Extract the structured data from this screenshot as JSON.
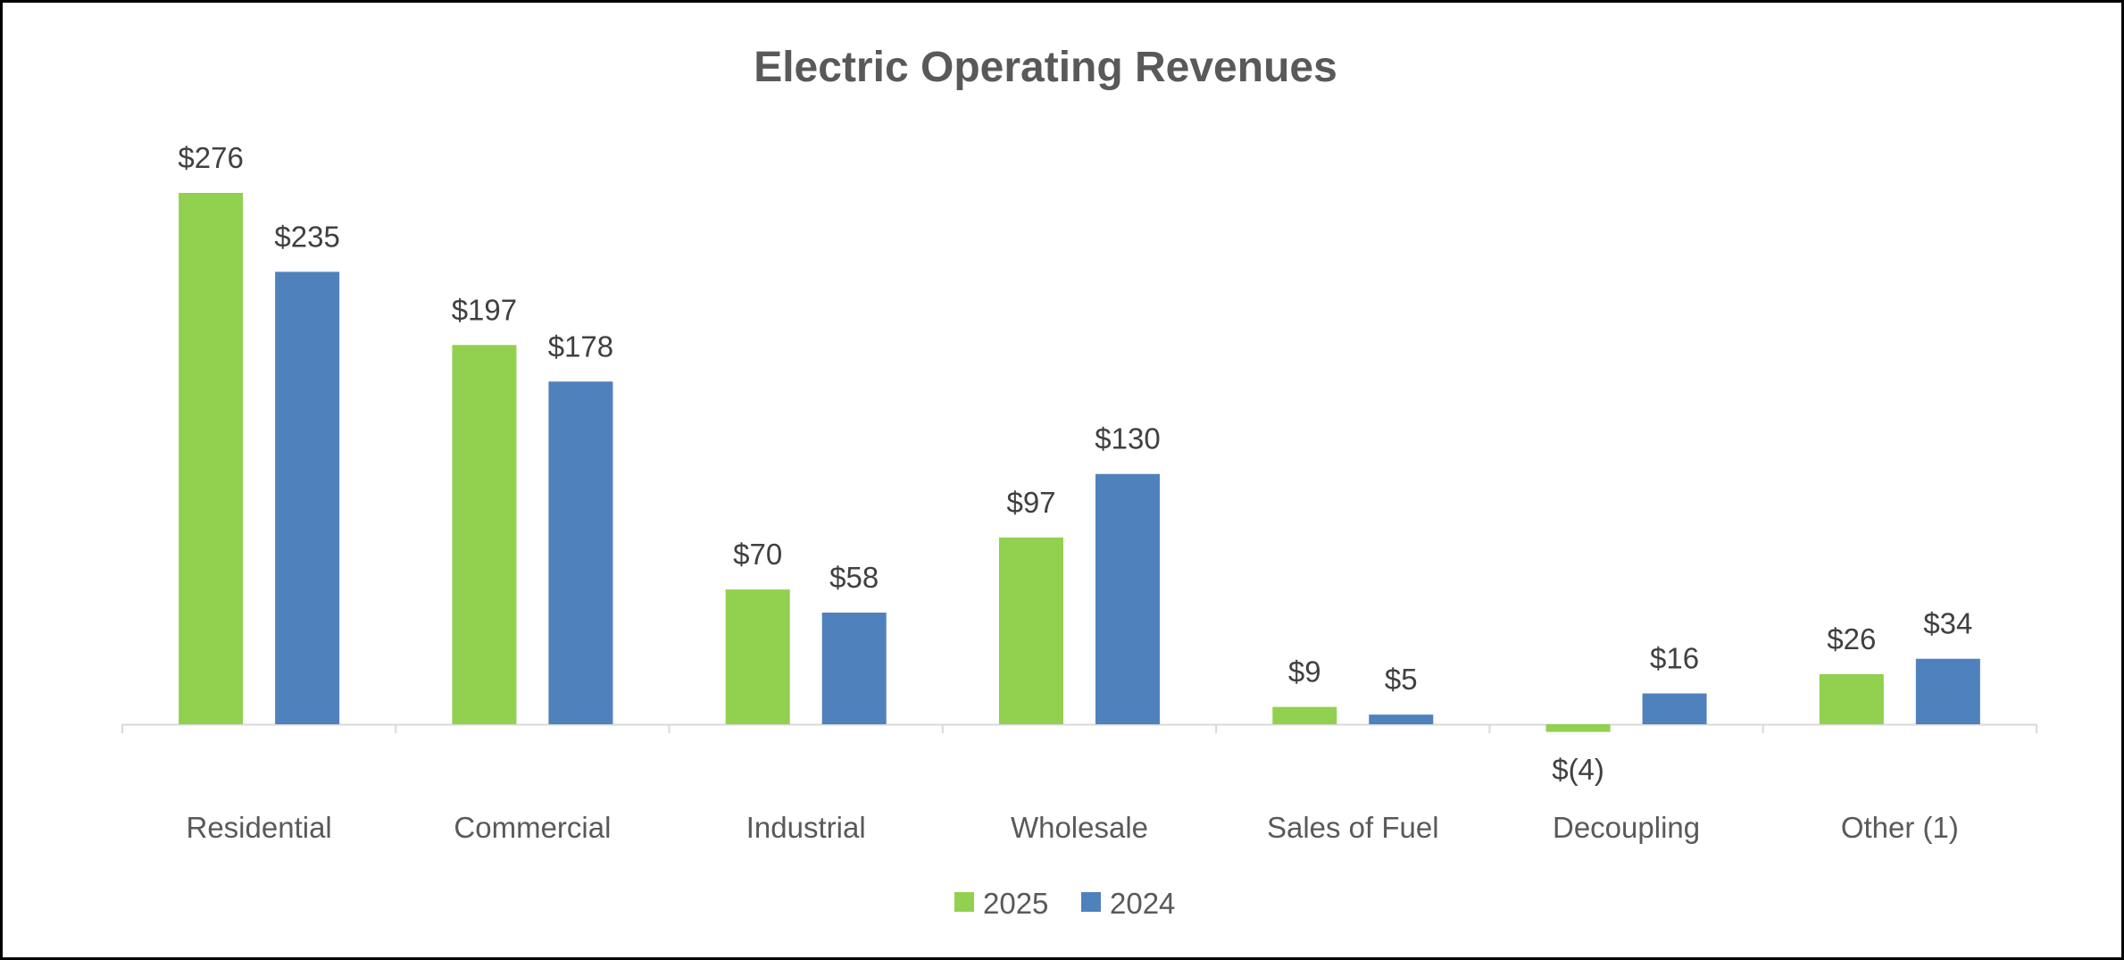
{
  "chart_data": {
    "type": "bar",
    "title": "Electric Operating Revenues",
    "xlabel": "",
    "ylabel": "",
    "categories": [
      "Residential",
      "Commercial",
      "Industrial",
      "Wholesale",
      "Sales of Fuel",
      "Decoupling",
      "Other (1)"
    ],
    "series": [
      {
        "name": "2025",
        "color": "#92d050",
        "values": [
          276,
          197,
          70,
          97,
          9,
          -4,
          26
        ],
        "labels": [
          "$276",
          "$197",
          "$70",
          "$97",
          "$9",
          "$(4)",
          "$26"
        ]
      },
      {
        "name": "2024",
        "color": "#4f81bd",
        "values": [
          235,
          178,
          58,
          130,
          5,
          16,
          34
        ],
        "labels": [
          "$235",
          "$178",
          "$58",
          "$130",
          "$5",
          "$16",
          "$34"
        ]
      }
    ],
    "ylim": [
      -4,
      276
    ],
    "grid": false,
    "legend": "bottom-center",
    "axis_color": "#d9d9d9"
  }
}
